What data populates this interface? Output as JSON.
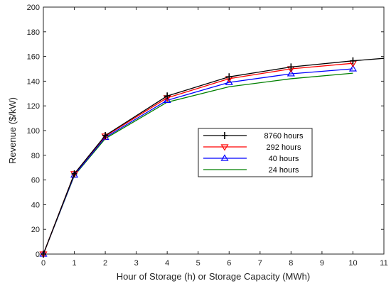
{
  "chart_data": {
    "type": "line",
    "title": "",
    "xlabel": "Hour of Storage (h) or Storage Capacity (MWh)",
    "ylabel": "Revenue ($/kW)",
    "xlim": [
      0,
      11
    ],
    "ylim": [
      0,
      200
    ],
    "xticks": [
      0,
      1,
      2,
      3,
      4,
      5,
      6,
      7,
      8,
      9,
      10,
      11
    ],
    "yticks": [
      0,
      20,
      40,
      60,
      80,
      100,
      120,
      140,
      160,
      180,
      200
    ],
    "grid": false,
    "legend_position": "center-right",
    "series": [
      {
        "name": "8760 hours",
        "color": "#000000",
        "marker": "plus",
        "x": [
          0,
          1,
          2,
          4,
          6,
          8,
          10,
          11
        ],
        "y": [
          0,
          65,
          96,
          128,
          143.5,
          151.5,
          156.5,
          158.5
        ],
        "marker_x": [
          0,
          1,
          2,
          4,
          6,
          8,
          10
        ]
      },
      {
        "name": "292 hours",
        "color": "#ff0000",
        "marker": "triangle-down",
        "x": [
          0,
          1,
          2,
          4,
          6,
          8,
          10
        ],
        "y": [
          0,
          65,
          95.5,
          126.5,
          142,
          150,
          154.5
        ],
        "marker_x": [
          0,
          1,
          2,
          4,
          6,
          8,
          10
        ]
      },
      {
        "name": "40 hours",
        "color": "#0000ff",
        "marker": "triangle-up",
        "x": [
          0,
          1,
          2,
          4,
          6,
          8,
          10
        ],
        "y": [
          0,
          64,
          94.5,
          124.5,
          139,
          146,
          150
        ],
        "marker_x": [
          0,
          1,
          2,
          4,
          6,
          8,
          10
        ]
      },
      {
        "name": "24 hours",
        "color": "#008000",
        "marker": "none",
        "x": [
          0,
          1,
          2,
          4,
          6,
          8,
          10
        ],
        "y": [
          0,
          63.5,
          93.5,
          123,
          135.5,
          142,
          146.5
        ],
        "marker_x": []
      }
    ]
  }
}
